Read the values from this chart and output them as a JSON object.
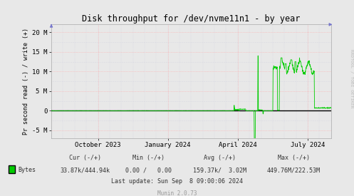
{
  "title": "Disk throughput for /dev/nvme11n1 - by year",
  "ylabel": "Pr second read (-) / write (+)",
  "background_color": "#e8e8e8",
  "plot_bg_color": "#e8e8e8",
  "grid_color_major": "#ffaaaa",
  "grid_color_minor": "#ccccdd",
  "line_color": "#00cc00",
  "zero_line_color": "#000000",
  "ylim": [
    -7000000,
    22000000
  ],
  "yticks": [
    -5000000,
    0,
    5000000,
    10000000,
    15000000,
    20000000
  ],
  "ytick_labels": [
    "-5 M",
    "0",
    "5 M",
    "10 M",
    "15 M",
    "20 M"
  ],
  "rrdtool_label": "RRDTOOL / TOBI OETIKER",
  "legend_color": "#00cc00",
  "munin_label": "Munin 2.0.73",
  "xtick_positions": [
    0.16667,
    0.41667,
    0.66667,
    0.91667
  ],
  "xtick_labels": [
    "October 2023",
    "January 2024",
    "April 2024",
    "July 2024"
  ],
  "footer_cur": "Cur (-/+)",
  "footer_min": "Min (-/+)",
  "footer_avg": "Avg (-/+)",
  "footer_max": "Max (-/+)",
  "footer_bytes_cur": "33.87k/444.94k",
  "footer_bytes_min": "0.00 /  0.00",
  "footer_bytes_avg": "159.37k/  3.02M",
  "footer_bytes_max": "449.76M/222.53M",
  "footer_last": "Last update: Sun Sep  8 09:00:06 2024"
}
